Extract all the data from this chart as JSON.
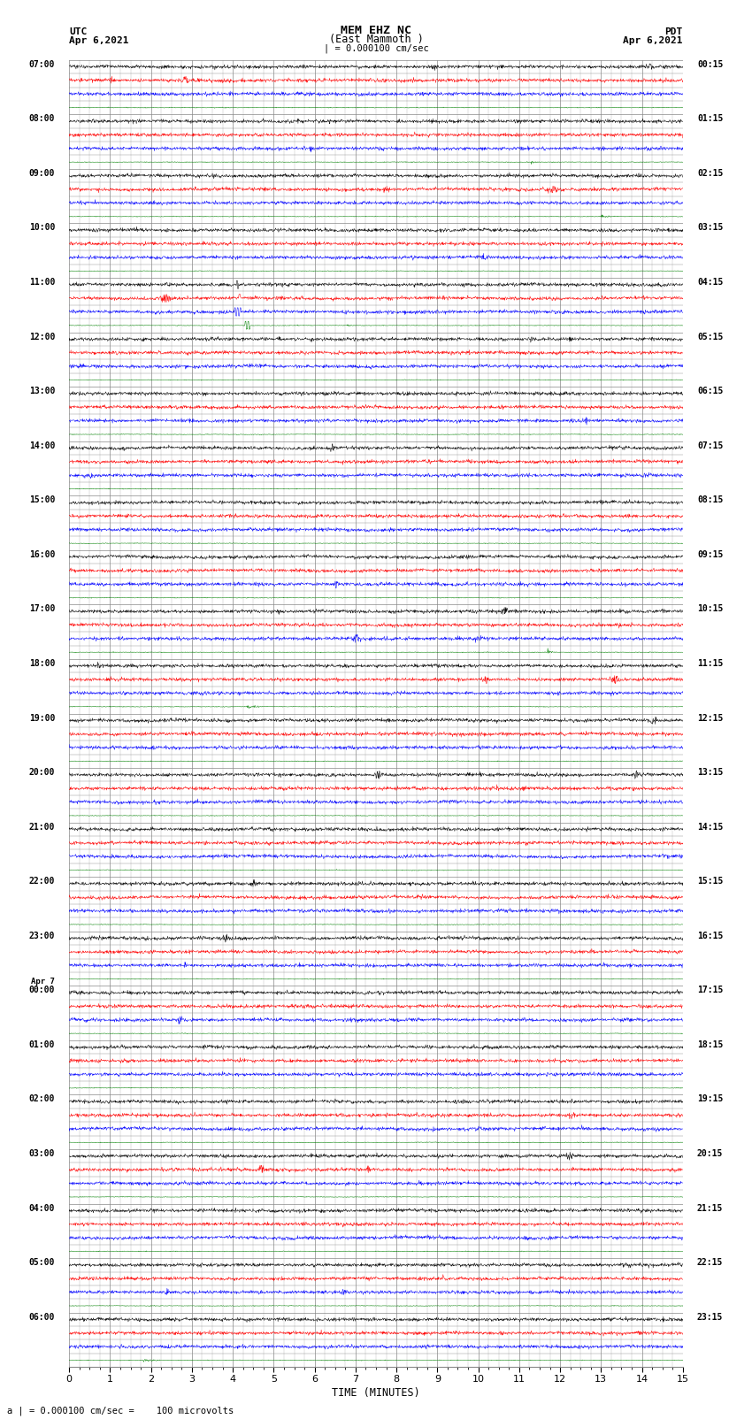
{
  "title_line1": "MEM EHZ NC",
  "title_line2": "(East Mammoth )",
  "scale_label": "| = 0.000100 cm/sec",
  "utc_label": "UTC",
  "utc_date": "Apr 6,2021",
  "pdt_label": "PDT",
  "pdt_date": "Apr 6,2021",
  "bottom_label": "a | = 0.000100 cm/sec =    100 microvolts",
  "xlabel": "TIME (MINUTES)",
  "xticks": [
    0,
    1,
    2,
    3,
    4,
    5,
    6,
    7,
    8,
    9,
    10,
    11,
    12,
    13,
    14,
    15
  ],
  "bg_color": "#ffffff",
  "grid_color": "#888888",
  "trace_colors": [
    "black",
    "red",
    "blue",
    "green"
  ],
  "left_times": [
    "07:00",
    "",
    "",
    "",
    "08:00",
    "",
    "",
    "",
    "09:00",
    "",
    "",
    "",
    "10:00",
    "",
    "",
    "",
    "11:00",
    "",
    "",
    "",
    "12:00",
    "",
    "",
    "",
    "13:00",
    "",
    "",
    "",
    "14:00",
    "",
    "",
    "",
    "15:00",
    "",
    "",
    "",
    "16:00",
    "",
    "",
    "",
    "17:00",
    "",
    "",
    "",
    "18:00",
    "",
    "",
    "",
    "19:00",
    "",
    "",
    "",
    "20:00",
    "",
    "",
    "",
    "21:00",
    "",
    "",
    "",
    "22:00",
    "",
    "",
    "",
    "23:00",
    "",
    "",
    "",
    "00:00",
    "",
    "",
    "",
    "01:00",
    "",
    "",
    "",
    "02:00",
    "",
    "",
    "",
    "03:00",
    "",
    "",
    "",
    "04:00",
    "",
    "",
    "",
    "05:00",
    "",
    "",
    "",
    "06:00",
    "",
    "",
    ""
  ],
  "right_times": [
    "00:15",
    "",
    "",
    "",
    "01:15",
    "",
    "",
    "",
    "02:15",
    "",
    "",
    "",
    "03:15",
    "",
    "",
    "",
    "04:15",
    "",
    "",
    "",
    "05:15",
    "",
    "",
    "",
    "06:15",
    "",
    "",
    "",
    "07:15",
    "",
    "",
    "",
    "08:15",
    "",
    "",
    "",
    "09:15",
    "",
    "",
    "",
    "10:15",
    "",
    "",
    "",
    "11:15",
    "",
    "",
    "",
    "12:15",
    "",
    "",
    "",
    "13:15",
    "",
    "",
    "",
    "14:15",
    "",
    "",
    "",
    "15:15",
    "",
    "",
    "",
    "16:15",
    "",
    "",
    "",
    "17:15",
    "",
    "",
    "",
    "18:15",
    "",
    "",
    "",
    "19:15",
    "",
    "",
    "",
    "20:15",
    "",
    "",
    "",
    "21:15",
    "",
    "",
    "",
    "22:15",
    "",
    "",
    "",
    "23:15",
    "",
    "",
    ""
  ],
  "n_rows": 96,
  "fig_width": 8.5,
  "fig_height": 16.13,
  "dpi": 100,
  "apr7_row_index": 68
}
